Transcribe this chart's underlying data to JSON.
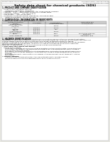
{
  "bg_color": "#e8e8e3",
  "paper_color": "#ffffff",
  "title": "Safety data sheet for chemical products (SDS)",
  "header_left": "Product Name: Lithium Ion Battery Cell",
  "header_right_line1": "Reference number: SDS-LIB-000010",
  "header_right_line2": "Established / Revision: Dec.7.2010",
  "section1_title": "1. PRODUCT AND COMPANY IDENTIFICATION",
  "section1_lines": [
    "• Product name: Lithium Ion Battery Cell",
    "• Product code: Cylindrical type cell",
    "    (IHR6600U, IHR18650U, IHR18650A)",
    "• Company name:    Sanyo Electric Co., Ltd., Mobile Energy Company",
    "• Address:    2-21-1  Kaminaizen, Sumoto-City, Hyogo, Japan",
    "• Telephone number:    +81-799-24-4111",
    "• Fax number:    +81-799-26-4129",
    "• Emergency telephone number (Weekdays): +81-799-26-3862",
    "    (Night and holidays): +81-799-26-4129"
  ],
  "section2_title": "2. COMPOSITION / INFORMATION ON INGREDIENTS",
  "section2_intro": "• Substance or preparation: Preparation",
  "section2_sub": "• Information about the chemical nature of product:",
  "table_headers": [
    "Component (common\nname) /\nChemical name",
    "CAS number",
    "Concentration /\nConcentration range",
    "Classification and\nhazard labeling"
  ],
  "table_rows": [
    [
      "Lithium cobalt oxide\n(LiMn/CoO₂)",
      "-",
      "30-60%",
      "-"
    ],
    [
      "Iron",
      "7439-89-6",
      "10-20%",
      "-"
    ],
    [
      "Aluminum",
      "7429-90-5",
      "2-5%",
      "-"
    ],
    [
      "Graphite\n(Artificial graphite)\n(Natural graphite)",
      "7782-42-5\n7782-44-2",
      "10-20%",
      "-"
    ],
    [
      "Copper",
      "7440-50-8",
      "5-15%",
      "Sensitization of the skin\ngroup No.2"
    ],
    [
      "Organic electrolyte",
      "-",
      "10-20%",
      "Inflammable liquid"
    ]
  ],
  "section3_title": "3. HAZARDS IDENTIFICATION",
  "section3_text": [
    "For the battery cell, chemical materials are stored in a hermetically sealed metal case, designed to withstand",
    "temperature changes and pressure-pressure conditions during normal use. As a result, during normal use, there is no",
    "physical danger of ignition or explosion and there is no danger of hazardous materials leakage.",
    "However, if exposed to a fire, added mechanical shocks, decomposed, while the alarms without any measures,",
    "the gas release vent will be operated. The battery cell case will be breached of the alarms. Hazardous",
    "materials may be released.",
    "Moreover, if heated strongly by the surrounding fire, solid gas may be emitted."
  ],
  "section3_important": "• Most important hazard and effects:",
  "section3_human": "Human health effects:",
  "section3_human_lines": [
    "Inhalation: The release of the electrolyte has an anesthesia action and stimulates in respiratory tract.",
    "Skin contact: The release of the electrolyte stimulates a skin. The electrolyte skin contact causes a",
    "sore and stimulation on the skin.",
    "Eye contact: The release of the electrolyte stimulates eyes. The electrolyte eye contact causes a sore",
    "and stimulation on the eye. Especially, a substance that causes a strong inflammation of the eye is",
    "contained.",
    "Environmental effects: Since a battery cell remains in the environment, do not throw out it into the",
    "environment."
  ],
  "section3_specific": "• Specific hazards:",
  "section3_specific_lines": [
    "If the electrolyte contacts with water, it will generate detrimental hydrogen fluoride.",
    "Since the used electrolyte is inflammable liquid, do not bring close to fire."
  ]
}
